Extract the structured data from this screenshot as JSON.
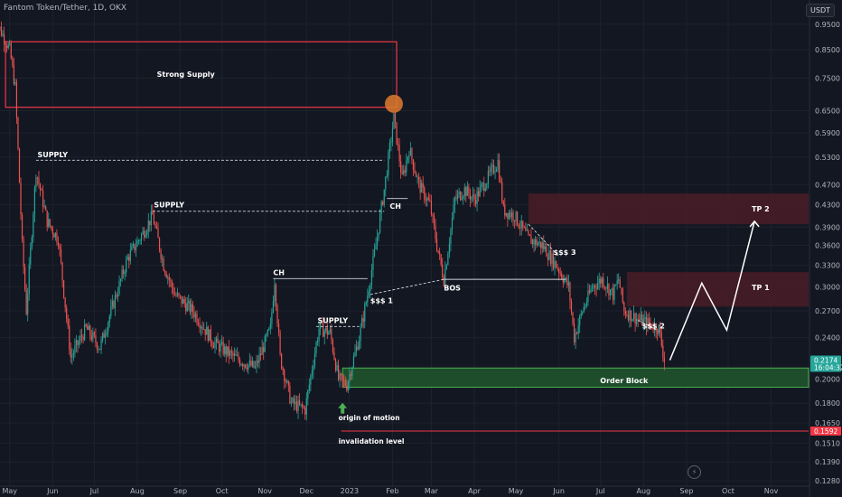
{
  "header": {
    "title": "Fantom Token/Tether, 1D, OKX",
    "currency": "USDT"
  },
  "chart_data": {
    "type": "candlestick",
    "title": "Fantom Token/Tether, 1D, OKX",
    "ylim": [
      0.125,
      1.0
    ],
    "scale": "log",
    "y_ticks": [
      "0.9500",
      "0.8500",
      "0.7500",
      "0.6500",
      "0.5900",
      "0.5300",
      "0.4700",
      "0.4300",
      "0.3900",
      "0.3600",
      "0.3300",
      "0.3000",
      "0.2700",
      "0.2400",
      "0.2000",
      "0.1800",
      "0.1650",
      "0.1510",
      "0.1390",
      "0.1280"
    ],
    "x_ticks": [
      "May",
      "Jun",
      "Jul",
      "Aug",
      "Sep",
      "Oct",
      "Nov",
      "Dec",
      "2023",
      "Feb",
      "Mar",
      "Apr",
      "May",
      "Jun",
      "Jul",
      "Aug",
      "Sep",
      "Oct",
      "Nov"
    ],
    "price_path": [
      {
        "x": "2022-04-20",
        "y": 0.98
      },
      {
        "x": "2022-05-01",
        "y": 0.85
      },
      {
        "x": "2022-05-05",
        "y": 0.72
      },
      {
        "x": "2022-05-10",
        "y": 0.36
      },
      {
        "x": "2022-05-13",
        "y": 0.27
      },
      {
        "x": "2022-05-20",
        "y": 0.5
      },
      {
        "x": "2022-05-28",
        "y": 0.4
      },
      {
        "x": "2022-06-05",
        "y": 0.37
      },
      {
        "x": "2022-06-14",
        "y": 0.22
      },
      {
        "x": "2022-06-25",
        "y": 0.25
      },
      {
        "x": "2022-07-05",
        "y": 0.23
      },
      {
        "x": "2022-07-15",
        "y": 0.28
      },
      {
        "x": "2022-07-25",
        "y": 0.34
      },
      {
        "x": "2022-08-05",
        "y": 0.38
      },
      {
        "x": "2022-08-12",
        "y": 0.41
      },
      {
        "x": "2022-08-20",
        "y": 0.33
      },
      {
        "x": "2022-08-28",
        "y": 0.29
      },
      {
        "x": "2022-09-10",
        "y": 0.27
      },
      {
        "x": "2022-09-25",
        "y": 0.235
      },
      {
        "x": "2022-10-10",
        "y": 0.22
      },
      {
        "x": "2022-10-25",
        "y": 0.21
      },
      {
        "x": "2022-11-05",
        "y": 0.25
      },
      {
        "x": "2022-11-08",
        "y": 0.31
      },
      {
        "x": "2022-11-12",
        "y": 0.22
      },
      {
        "x": "2022-11-20",
        "y": 0.18
      },
      {
        "x": "2022-11-30",
        "y": 0.175
      },
      {
        "x": "2022-12-05",
        "y": 0.21
      },
      {
        "x": "2022-12-10",
        "y": 0.25
      },
      {
        "x": "2022-12-18",
        "y": 0.245
      },
      {
        "x": "2022-12-24",
        "y": 0.2
      },
      {
        "x": "2022-12-30",
        "y": 0.195
      },
      {
        "x": "2023-01-08",
        "y": 0.24
      },
      {
        "x": "2023-01-14",
        "y": 0.29
      },
      {
        "x": "2023-01-20",
        "y": 0.36
      },
      {
        "x": "2023-01-26",
        "y": 0.46
      },
      {
        "x": "2023-02-02",
        "y": 0.63
      },
      {
        "x": "2023-02-08",
        "y": 0.48
      },
      {
        "x": "2023-02-13",
        "y": 0.55
      },
      {
        "x": "2023-02-20",
        "y": 0.47
      },
      {
        "x": "2023-02-28",
        "y": 0.43
      },
      {
        "x": "2023-03-05",
        "y": 0.36
      },
      {
        "x": "2023-03-10",
        "y": 0.31
      },
      {
        "x": "2023-03-18",
        "y": 0.44
      },
      {
        "x": "2023-03-25",
        "y": 0.46
      },
      {
        "x": "2023-04-01",
        "y": 0.44
      },
      {
        "x": "2023-04-10",
        "y": 0.48
      },
      {
        "x": "2023-04-18",
        "y": 0.52
      },
      {
        "x": "2023-04-22",
        "y": 0.42
      },
      {
        "x": "2023-04-30",
        "y": 0.41
      },
      {
        "x": "2023-05-10",
        "y": 0.37
      },
      {
        "x": "2023-05-20",
        "y": 0.36
      },
      {
        "x": "2023-05-30",
        "y": 0.33
      },
      {
        "x": "2023-06-08",
        "y": 0.3
      },
      {
        "x": "2023-06-12",
        "y": 0.24
      },
      {
        "x": "2023-06-18",
        "y": 0.27
      },
      {
        "x": "2023-06-25",
        "y": 0.3
      },
      {
        "x": "2023-07-02",
        "y": 0.31
      },
      {
        "x": "2023-07-10",
        "y": 0.29
      },
      {
        "x": "2023-07-14",
        "y": 0.31
      },
      {
        "x": "2023-07-18",
        "y": 0.27
      },
      {
        "x": "2023-07-28",
        "y": 0.26
      },
      {
        "x": "2023-08-05",
        "y": 0.255
      },
      {
        "x": "2023-08-12",
        "y": 0.25
      },
      {
        "x": "2023-08-16",
        "y": 0.2174
      }
    ],
    "last_price": "0.2174",
    "countdown": "16:04:32",
    "invalidation_price": "0.1592",
    "zones": [
      {
        "name": "Strong Supply",
        "from": "2022-04-28",
        "to": "2023-02-04",
        "low": 0.66,
        "high": 0.88
      },
      {
        "name": "Order Block",
        "from": "2022-12-27",
        "to": "2023-11-30",
        "low": 0.193,
        "high": 0.21
      },
      {
        "name": "TP 2",
        "from": "2023-05-10",
        "to": "2023-11-30",
        "low": 0.395,
        "high": 0.452
      },
      {
        "name": "TP 1",
        "from": "2023-07-20",
        "to": "2023-11-30",
        "low": 0.275,
        "high": 0.32
      }
    ],
    "annotations": {
      "strong_supply": "Strong Supply",
      "supply_1": "SUPPLY",
      "supply_2": "SUPPLY",
      "supply_3": "SUPPLY",
      "ch_1": "CH",
      "ch_2": "CH",
      "sss_1": "$$$ 1",
      "sss_2": "$$$ 2",
      "sss_3": "$$$ 3",
      "bos": "BOS",
      "order_block": "Order  Block",
      "tp_1": "TP 1",
      "tp_2": "TP 2",
      "origin": "origin of motion",
      "invalidation": "invalidation level"
    },
    "projection": [
      {
        "x": "2023-08-20",
        "y": 0.2174
      },
      {
        "x": "2023-09-12",
        "y": 0.305
      },
      {
        "x": "2023-09-30",
        "y": 0.248
      },
      {
        "x": "2023-10-20",
        "y": 0.4
      }
    ],
    "colors": {
      "background": "#131722",
      "up": "#26a69a",
      "down": "#ef5350",
      "supply_border": "#f23645",
      "tp_fill": "#4a1c26",
      "order_block_fill": "#1e4d2b",
      "order_block_border": "#4caf50",
      "invalidation": "#f23645",
      "highlight": "#e07a2e",
      "last_price_bg": "#26a69a",
      "invalidation_bg": "#f23645"
    }
  }
}
